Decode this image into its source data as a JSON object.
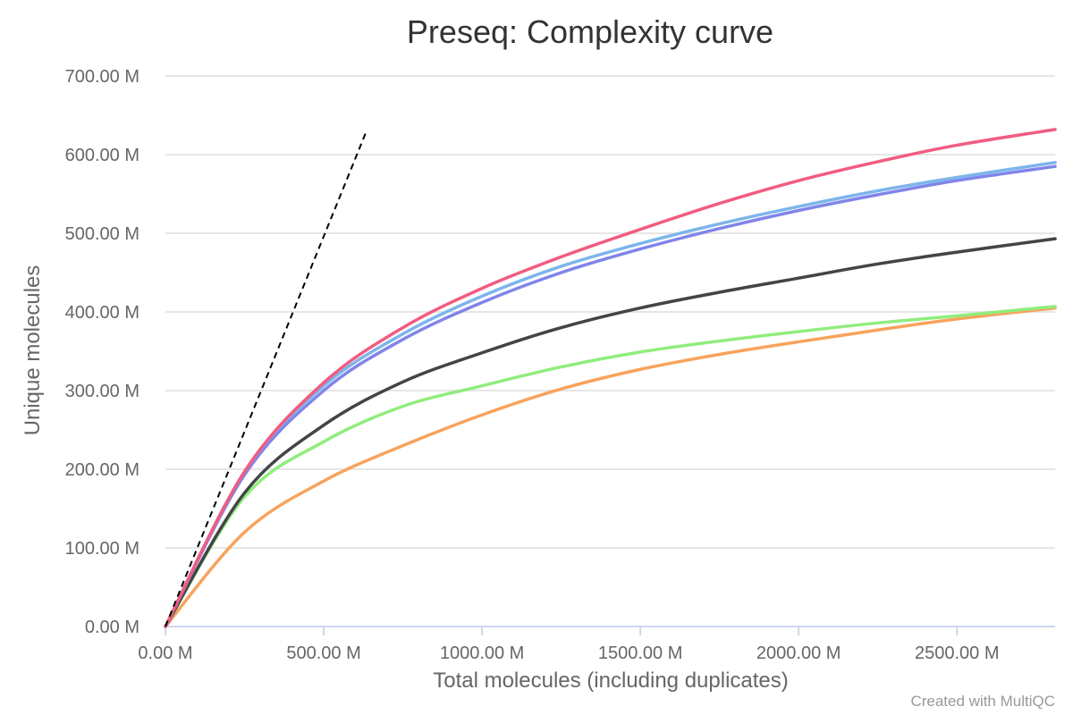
{
  "chart_data": {
    "type": "line",
    "title": "Preseq: Complexity curve",
    "xlabel": "Total molecules (including duplicates)",
    "ylabel": "Unique molecules",
    "xlim": [
      0,
      2810
    ],
    "ylim": [
      0,
      700
    ],
    "x_ticks": [
      "0.00 M",
      "500.00 M",
      "1000.00 M",
      "1500.00 M",
      "2000.00 M",
      "2500.00 M"
    ],
    "y_ticks": [
      "0.00 M",
      "100.00 M",
      "200.00 M",
      "300.00 M",
      "400.00 M",
      "500.00 M",
      "600.00 M",
      "700.00 M"
    ],
    "grid": true,
    "legend": "none",
    "credit": "Created with MultiQC",
    "reference_line": {
      "style": "dashed",
      "color": "#000000",
      "x": [
        0,
        635
      ],
      "y": [
        0,
        630
      ]
    },
    "series": [
      {
        "color": "#f15c80",
        "x": [
          0,
          250,
          500,
          750,
          1000,
          1250,
          1500,
          1750,
          2000,
          2250,
          2500,
          2810
        ],
        "y": [
          0,
          197,
          310,
          380,
          430,
          470,
          505,
          538,
          567,
          591,
          612,
          632
        ]
      },
      {
        "color": "#7cb5ec",
        "x": [
          0,
          250,
          500,
          750,
          1000,
          1250,
          1500,
          1750,
          2000,
          2250,
          2500,
          2810
        ],
        "y": [
          0,
          197,
          306,
          372,
          420,
          458,
          487,
          512,
          534,
          554,
          571,
          590
        ]
      },
      {
        "color": "#8085e9",
        "x": [
          0,
          250,
          500,
          750,
          1000,
          1250,
          1500,
          1750,
          2000,
          2250,
          2500,
          2810
        ],
        "y": [
          0,
          193,
          300,
          365,
          412,
          450,
          480,
          506,
          529,
          549,
          567,
          585
        ]
      },
      {
        "color": "#434348",
        "x": [
          0,
          250,
          500,
          750,
          1000,
          1250,
          1500,
          1750,
          2000,
          2250,
          2500,
          2810
        ],
        "y": [
          0,
          170,
          256,
          311,
          348,
          380,
          405,
          425,
          443,
          461,
          476,
          493
        ]
      },
      {
        "color": "#90ed7d",
        "x": [
          0,
          250,
          500,
          750,
          1000,
          1250,
          1500,
          1750,
          2000,
          2250,
          2500,
          2810
        ],
        "y": [
          0,
          165,
          235,
          280,
          306,
          330,
          349,
          363,
          375,
          386,
          395,
          407
        ]
      },
      {
        "color": "#f7a35c",
        "x": [
          0,
          250,
          500,
          750,
          1000,
          1250,
          1500,
          1750,
          2000,
          2250,
          2500,
          2810
        ],
        "y": [
          0,
          120,
          185,
          230,
          269,
          302,
          327,
          346,
          362,
          377,
          391,
          405
        ]
      }
    ]
  }
}
